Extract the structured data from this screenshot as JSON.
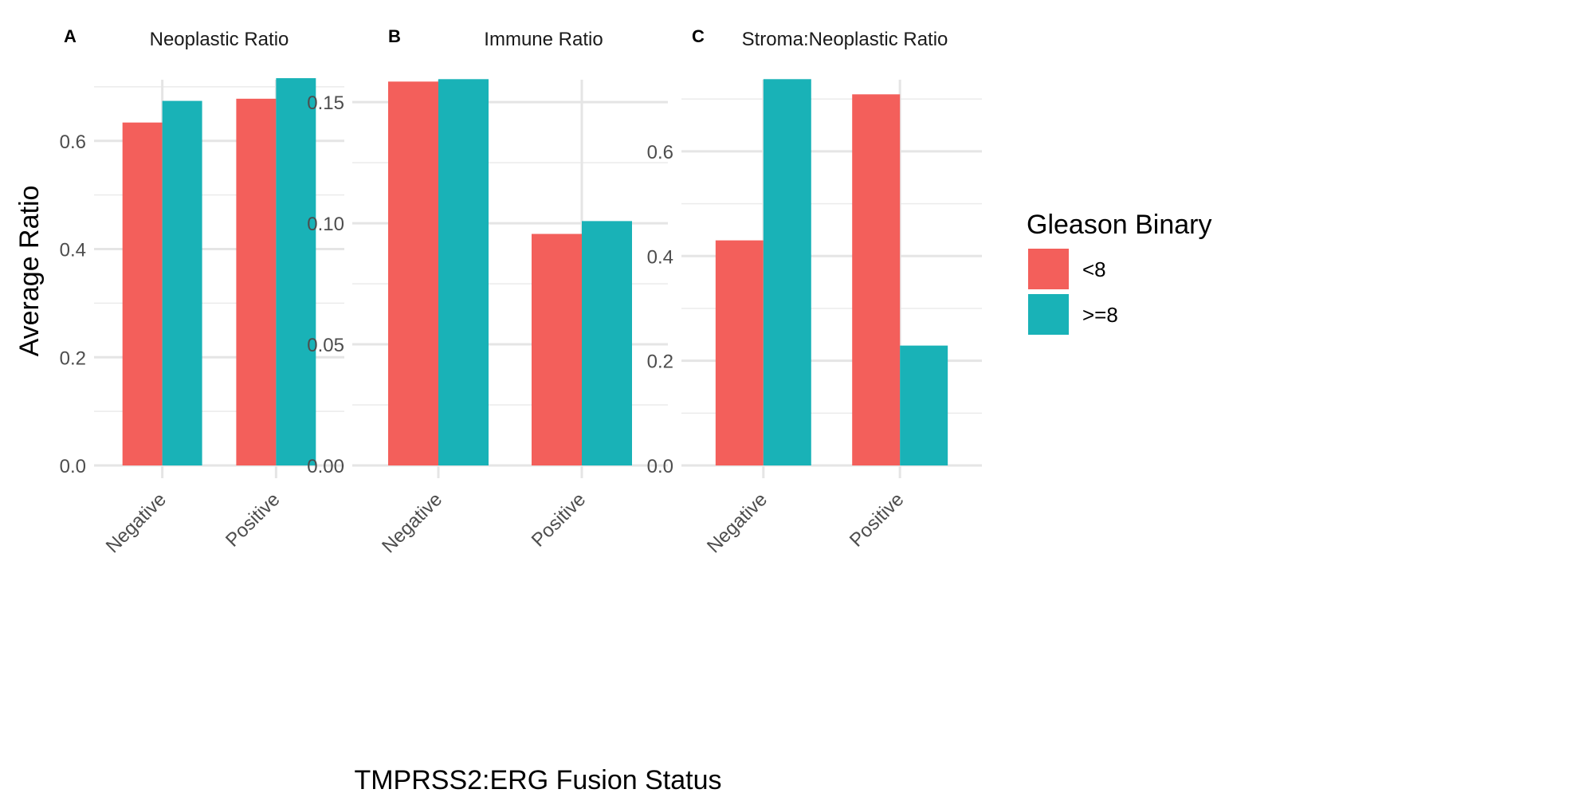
{
  "chart_data": [
    {
      "type": "bar",
      "tag": "A",
      "title": "Neoplastic Ratio",
      "categories": [
        "Negative",
        "Positive"
      ],
      "series": [
        {
          "name": "<8",
          "values": [
            0.634,
            0.678
          ]
        },
        {
          "name": ">=8",
          "values": [
            0.674,
            0.716
          ]
        }
      ],
      "ylim": [
        0,
        0.75
      ],
      "yticks": [
        0.0,
        0.2,
        0.4,
        0.6
      ],
      "ytick_labels": [
        "0.0",
        "0.2",
        "0.4",
        "0.6"
      ],
      "grid": true
    },
    {
      "type": "bar",
      "tag": "B",
      "title": "Immune Ratio",
      "categories": [
        "Negative",
        "Positive"
      ],
      "series": [
        {
          "name": "<8",
          "values": [
            0.1585,
            0.0956
          ]
        },
        {
          "name": ">=8",
          "values": [
            0.1595,
            0.1009
          ]
        }
      ],
      "ylim": [
        0,
        0.1675
      ],
      "yticks": [
        0.0,
        0.05,
        0.1,
        0.15
      ],
      "ytick_labels": [
        "0.00",
        "0.05",
        "0.10",
        "0.15"
      ],
      "grid": true
    },
    {
      "type": "bar",
      "tag": "C",
      "title": "Stroma:Neoplastic Ratio",
      "categories": [
        "Negative",
        "Positive"
      ],
      "series": [
        {
          "name": "<8",
          "values": [
            0.43,
            0.709
          ]
        },
        {
          "name": ">=8",
          "values": [
            0.738,
            0.229
          ]
        }
      ],
      "ylim": [
        0,
        0.775
      ],
      "yticks": [
        0.0,
        0.2,
        0.4,
        0.6
      ],
      "ytick_labels": [
        "0.0",
        "0.2",
        "0.4",
        "0.6"
      ],
      "grid": true
    }
  ],
  "xlabel": "TMPRSS2:ERG Fusion Status",
  "ylabel": "Average Ratio",
  "legend": {
    "title": "Gleason Binary",
    "position": "right",
    "items": [
      {
        "label": "<8",
        "color": "#F35F5B"
      },
      {
        "label": ">=8",
        "color": "#19B2B7"
      }
    ]
  }
}
